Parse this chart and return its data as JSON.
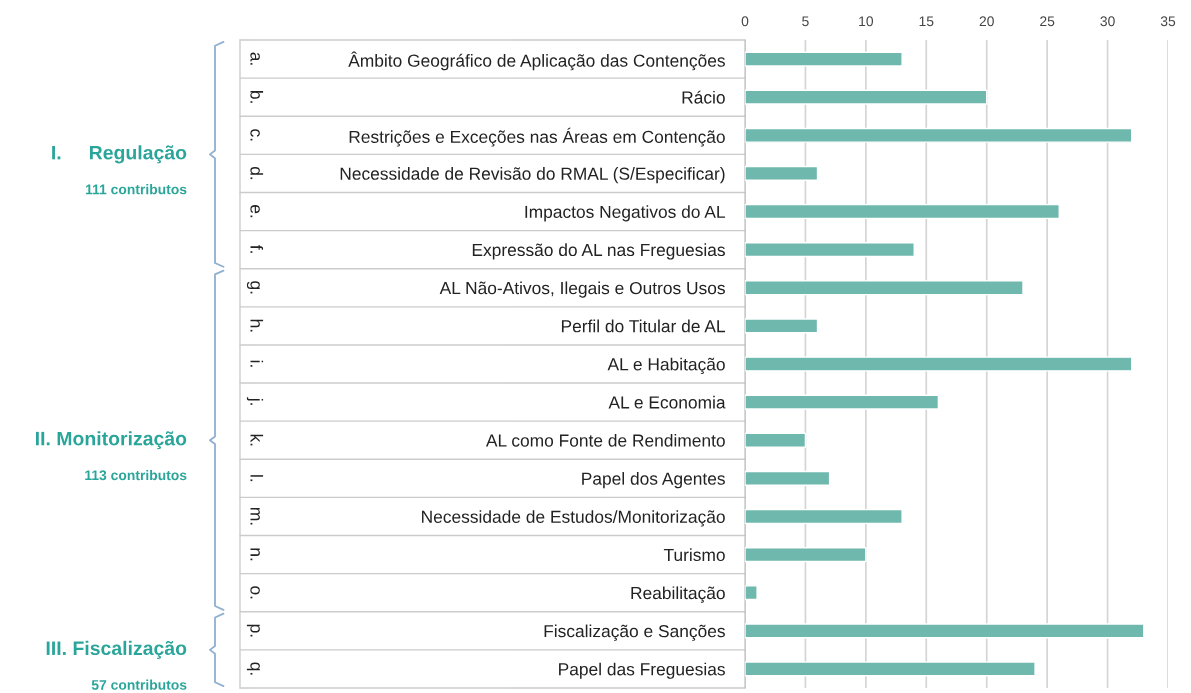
{
  "chart_data": {
    "type": "bar",
    "orientation": "horizontal",
    "categories": [
      "Âmbito Geográfico de Aplicação das Contenções",
      "Rácio",
      "Restrições e Exceções nas Áreas em Contenção",
      "Necessidade de Revisão do RMAL (S/Especificar)",
      "Impactos Negativos do AL",
      "Expressão do AL nas Freguesias",
      "AL Não-Ativos, Ilegais e Outros Usos",
      "Perfil do Titular de AL",
      "AL e Habitação",
      "AL e Economia",
      "AL como Fonte de Rendimento",
      "Papel dos Agentes",
      "Necessidade de Estudos/Monitorização",
      "Turismo",
      "Reabilitação",
      "Fiscalização e Sanções",
      "Papel das Freguesias"
    ],
    "values": [
      13,
      20,
      32,
      6,
      26,
      14,
      23,
      6,
      32,
      16,
      5,
      7,
      13,
      10,
      1,
      33,
      24
    ],
    "color": "#6fb8ad",
    "xlim": [
      0,
      35
    ],
    "xticks": [
      0,
      5,
      10,
      15,
      20,
      25,
      30,
      35
    ],
    "grid": "x",
    "annotations": [
      "I.     Regulação\n111 contributos",
      "a.",
      "b.",
      "c.",
      "d.",
      "e.",
      "f.",
      "II. Monitorização\n113 contributos",
      "g.",
      "h.",
      "i.",
      "j.",
      "k.",
      "l.",
      "m.",
      "n.",
      "o.",
      "III. Fiscalização\n57 contributos",
      "p.",
      "q."
    ]
  }
}
